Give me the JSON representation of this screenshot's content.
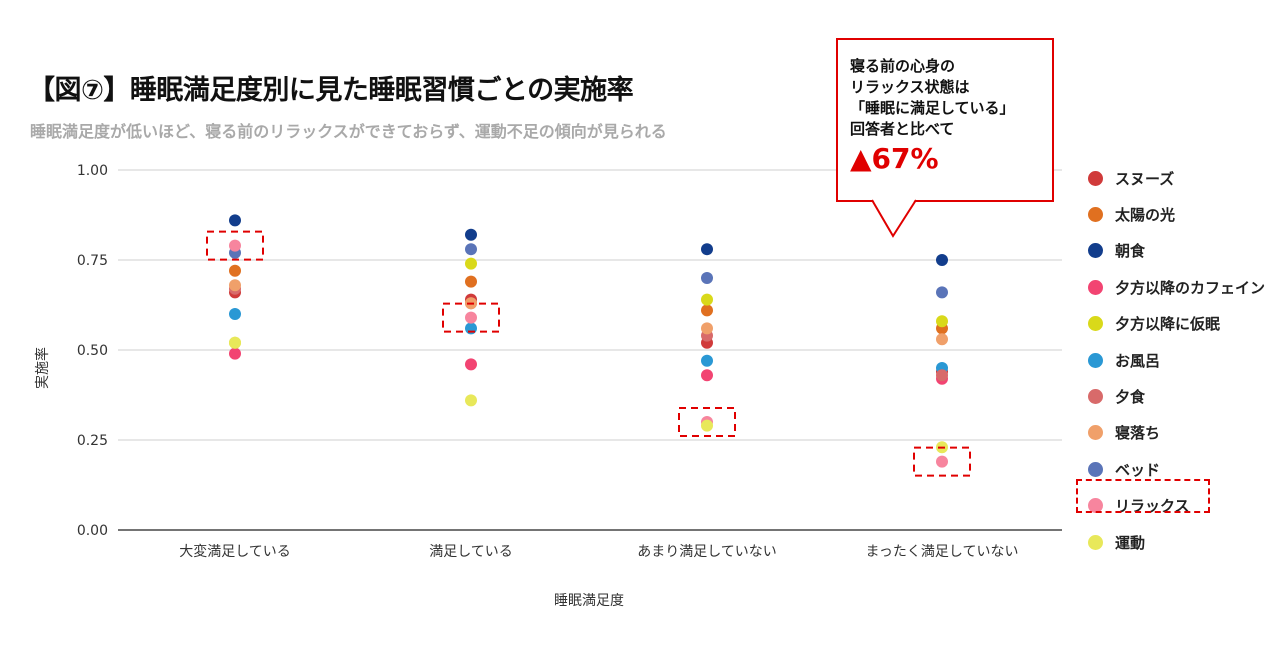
{
  "title": "【図⑦】睡眠満足度別に見た睡眠習慣ごとの実施率",
  "subtitle": "睡眠満足度が低いほど、寝る前のリラックスができておらず、運動不足の傾向が見られる",
  "callout": {
    "lines": [
      "寝る前の心身の",
      "リラックス状態は",
      "「睡眠に満足している」",
      "回答者と比べて"
    ],
    "highlight": "▲67%"
  },
  "chart_data": {
    "type": "scatter",
    "categories": [
      "大変満足している",
      "満足している",
      "あまり満足していない",
      "まったく満足していない"
    ],
    "xlabel": "睡眠満足度",
    "ylabel": "実施率",
    "ylim": [
      0,
      1
    ],
    "yticks": [
      "0.00",
      "0.25",
      "0.50",
      "0.75",
      "1.00"
    ],
    "grid": true,
    "legend_position": "right",
    "series": [
      {
        "name": "スヌーズ",
        "color": "#d03a3a",
        "values": [
          0.66,
          0.64,
          0.52,
          0.44
        ]
      },
      {
        "name": "太陽の光",
        "color": "#e07020",
        "values": [
          0.72,
          0.69,
          0.61,
          0.56
        ]
      },
      {
        "name": "朝食",
        "color": "#123d8c",
        "values": [
          0.86,
          0.82,
          0.78,
          0.75
        ]
      },
      {
        "name": "夕方以降のカフェイン",
        "color": "#f24472",
        "values": [
          0.49,
          0.46,
          0.43,
          0.42
        ]
      },
      {
        "name": "夕方以降に仮眠",
        "color": "#d9d91a",
        "values": [
          0.52,
          0.74,
          0.64,
          0.58
        ]
      },
      {
        "name": "お風呂",
        "color": "#2a98d4",
        "values": [
          0.6,
          0.56,
          0.47,
          0.45
        ]
      },
      {
        "name": "夕食",
        "color": "#d86a6a",
        "values": [
          0.67,
          0.63,
          0.54,
          0.43
        ]
      },
      {
        "name": "寝落ち",
        "color": "#f0a06a",
        "values": [
          0.68,
          0.63,
          0.56,
          0.53
        ]
      },
      {
        "name": "ベッド",
        "color": "#5a74b8",
        "values": [
          0.77,
          0.78,
          0.7,
          0.66
        ]
      },
      {
        "name": "リラックス",
        "color": "#f7859e",
        "values": [
          0.79,
          0.59,
          0.3,
          0.19
        ]
      },
      {
        "name": "運動",
        "color": "#e8e85a",
        "values": [
          0.52,
          0.36,
          0.29,
          0.23
        ]
      }
    ],
    "highlight_series": "リラックス"
  }
}
